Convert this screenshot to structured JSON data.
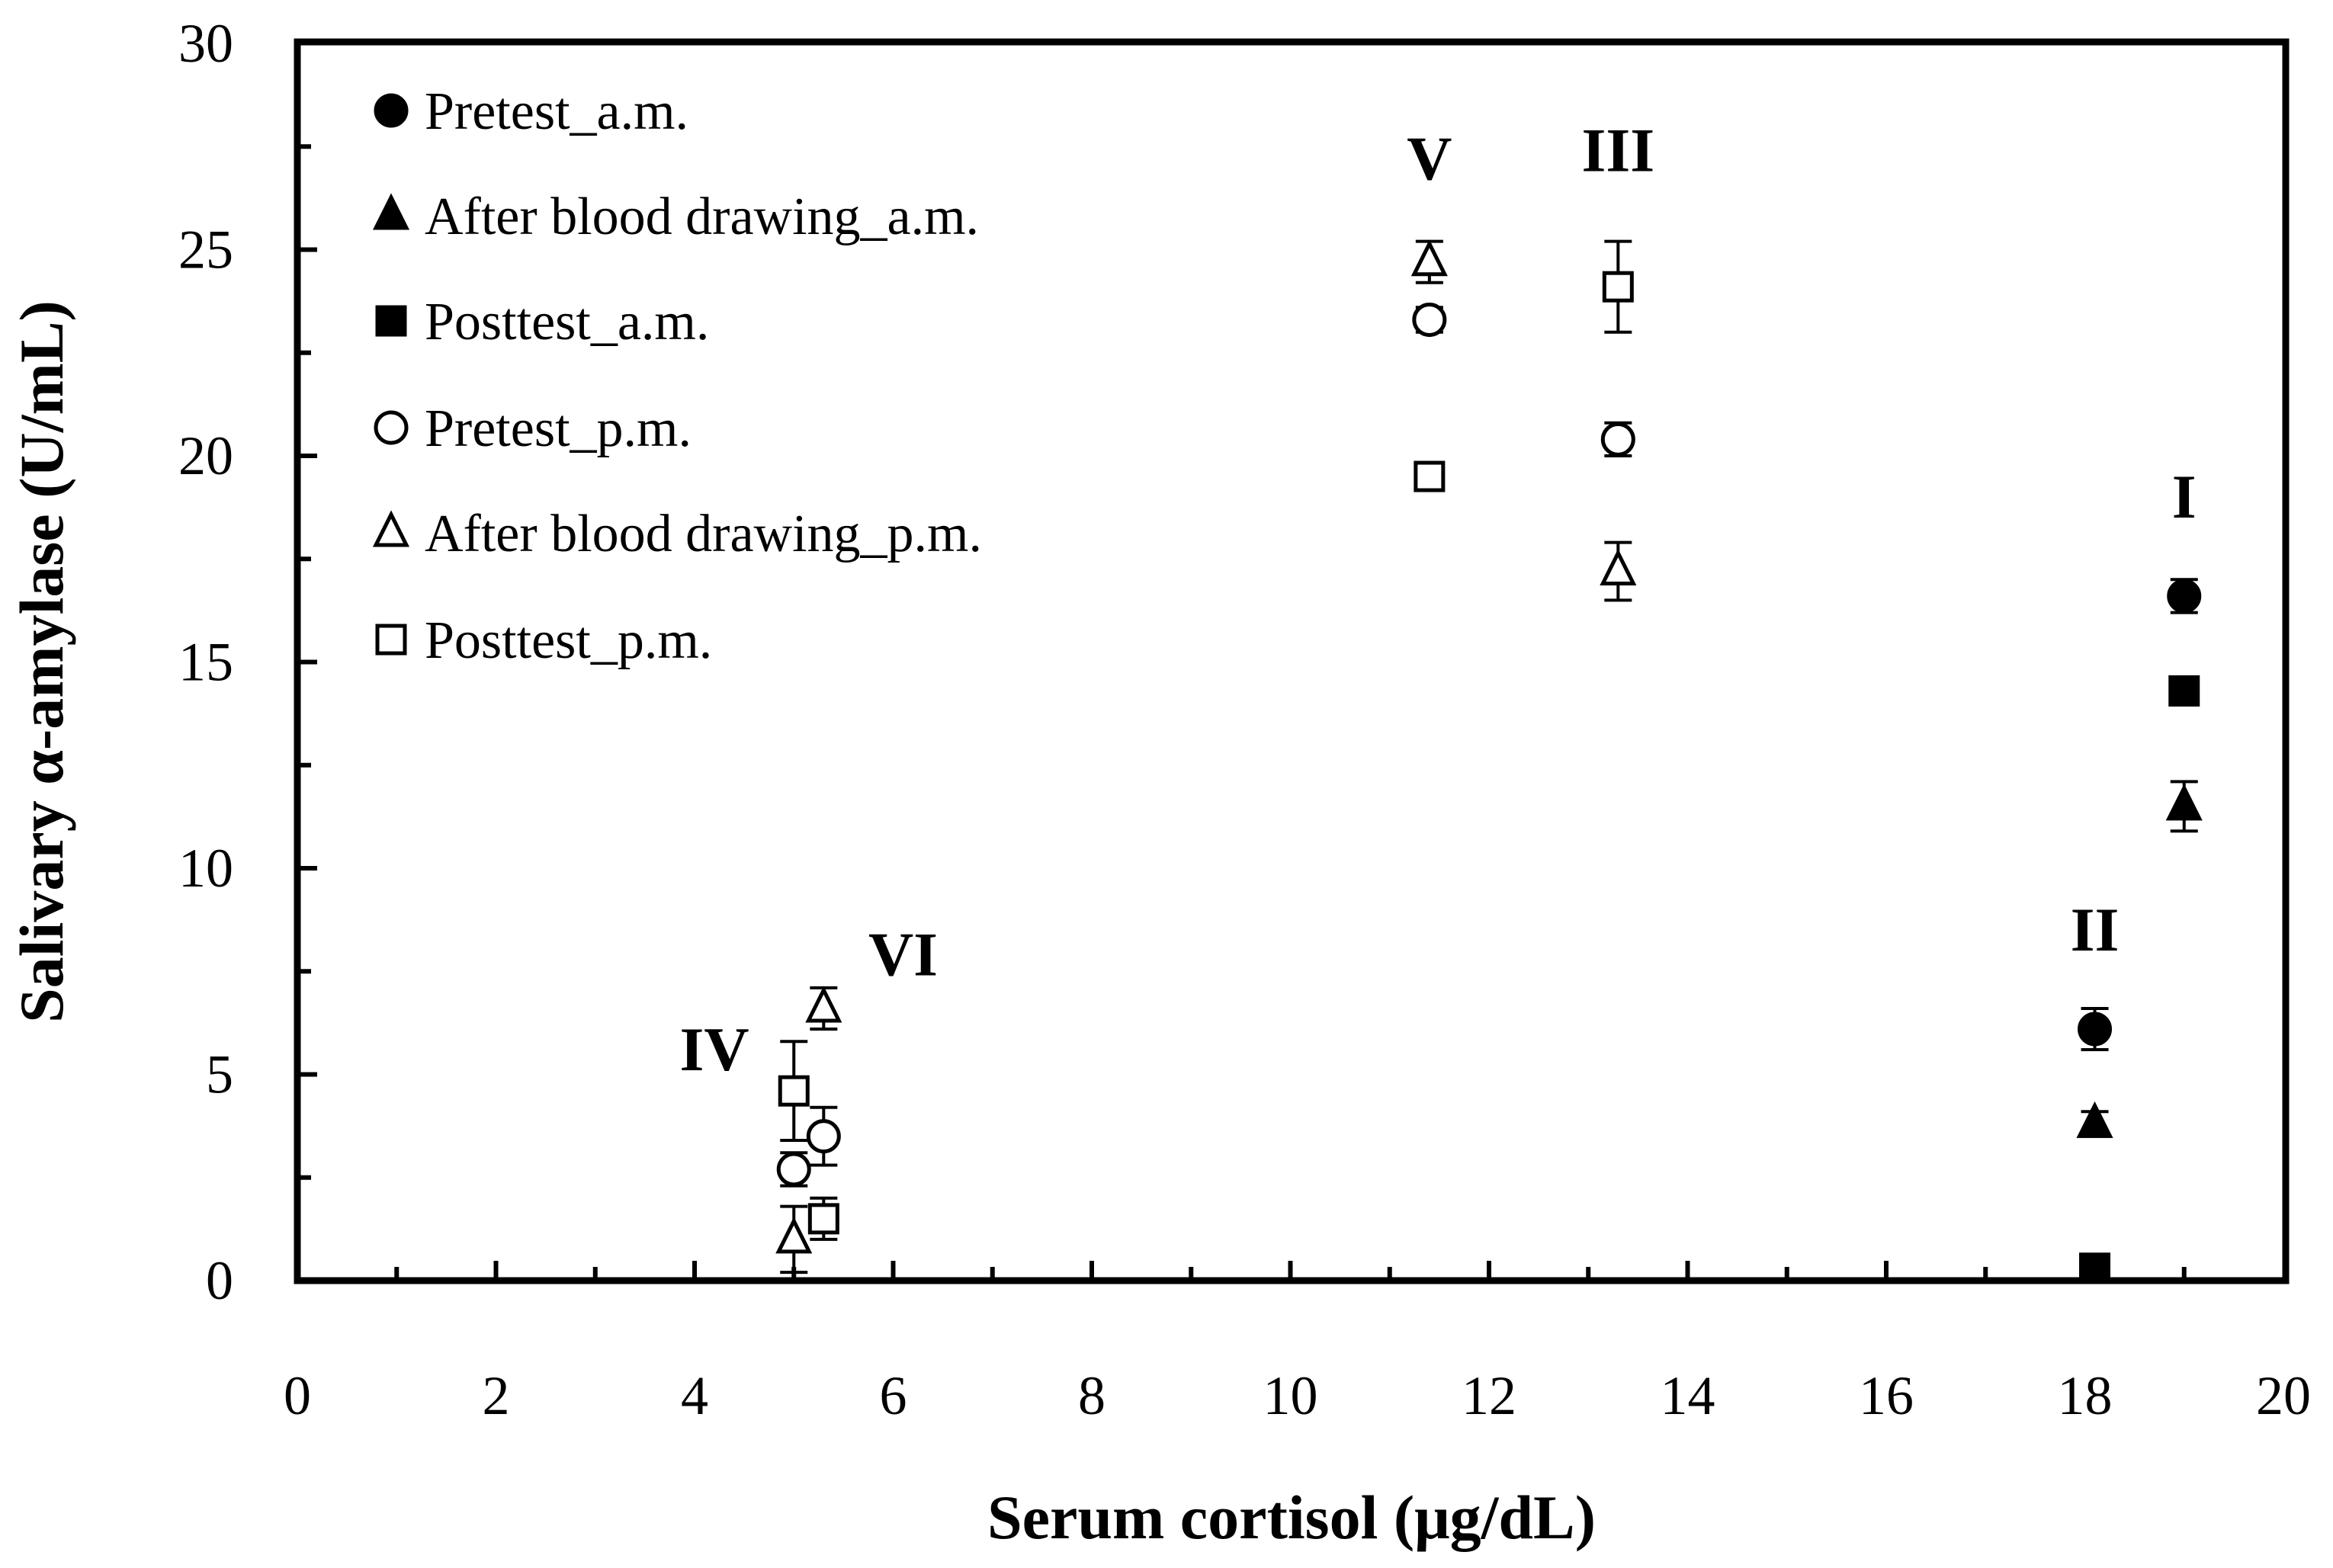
{
  "chart_data": {
    "type": "scatter",
    "title": "",
    "xlabel": "Serum cortisol (μg/dL)",
    "ylabel": "Salivary α-amylase (U/mL)",
    "xlim": [
      0,
      20
    ],
    "ylim": [
      0,
      30
    ],
    "xticks": [
      "0",
      "2",
      "4",
      "6",
      "8",
      "10",
      "12",
      "14",
      "16",
      "18",
      "20"
    ],
    "yticks": [
      "0",
      "5",
      "10",
      "15",
      "20",
      "25",
      "30"
    ],
    "grid": false,
    "legend_position": "top-left",
    "series": [
      {
        "name": "Pretest_a.m.",
        "marker": "circle",
        "filled": true,
        "points": [
          {
            "x": 19.0,
            "y": 16.6,
            "err": 0.4
          },
          {
            "x": 18.1,
            "y": 6.1,
            "err": 0.5
          }
        ]
      },
      {
        "name": "After blood drawing_a.m.",
        "marker": "triangle",
        "filled": true,
        "points": [
          {
            "x": 19.0,
            "y": 11.5,
            "err": 0.6
          },
          {
            "x": 18.1,
            "y": 3.8,
            "err": 0.3
          }
        ]
      },
      {
        "name": "Posttest_a.m.",
        "marker": "square",
        "filled": true,
        "points": [
          {
            "x": 19.0,
            "y": 14.3,
            "err": 0.2
          },
          {
            "x": 18.1,
            "y": 0.3,
            "err": 0.1
          }
        ]
      },
      {
        "name": "Pretest_p.m.",
        "marker": "circle",
        "filled": false,
        "points": [
          {
            "x": 11.4,
            "y": 23.3,
            "err": 0.3
          },
          {
            "x": 13.3,
            "y": 20.4,
            "err": 0.4
          },
          {
            "x": 5.0,
            "y": 2.7,
            "err": 0.4
          },
          {
            "x": 5.3,
            "y": 3.5,
            "err": 0.7
          }
        ]
      },
      {
        "name": "After blood drawing_p.m.",
        "marker": "triangle",
        "filled": false,
        "points": [
          {
            "x": 11.4,
            "y": 24.7,
            "err": 0.5
          },
          {
            "x": 13.3,
            "y": 17.2,
            "err": 0.7
          },
          {
            "x": 5.0,
            "y": 1.0,
            "err": 0.8
          },
          {
            "x": 5.3,
            "y": 6.6,
            "err": 0.5
          }
        ]
      },
      {
        "name": "Posttest_p.m.",
        "marker": "square",
        "filled": false,
        "points": [
          {
            "x": 11.4,
            "y": 19.5,
            "err": 0.3
          },
          {
            "x": 13.3,
            "y": 24.1,
            "err": 1.1
          },
          {
            "x": 5.0,
            "y": 4.6,
            "err": 1.2
          },
          {
            "x": 5.3,
            "y": 1.5,
            "err": 0.5
          }
        ]
      }
    ],
    "annotations": [
      {
        "text": "I",
        "x": 19.0,
        "y": 18.5
      },
      {
        "text": "II",
        "x": 18.1,
        "y": 8.0
      },
      {
        "text": "III",
        "x": 13.3,
        "y": 26.9
      },
      {
        "text": "IV",
        "x": 4.2,
        "y": 5.1
      },
      {
        "text": "V",
        "x": 11.4,
        "y": 26.7
      },
      {
        "text": "VI",
        "x": 6.1,
        "y": 7.4
      }
    ]
  }
}
